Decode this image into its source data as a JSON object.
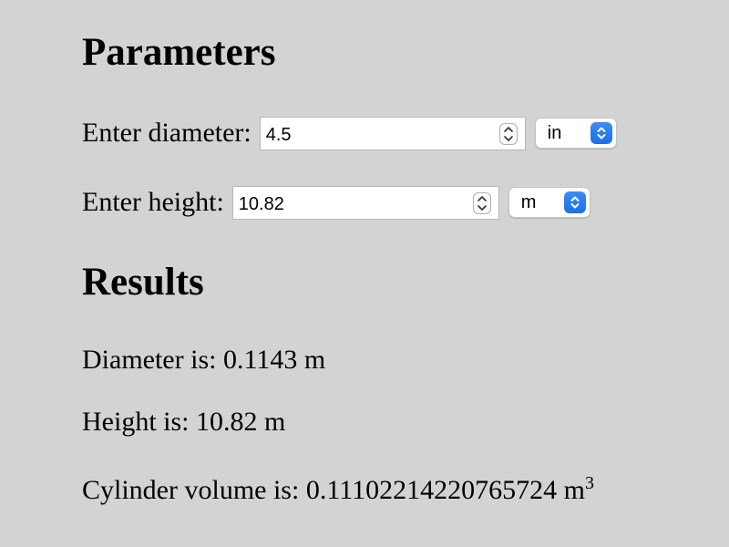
{
  "parameters": {
    "heading": "Parameters",
    "diameter": {
      "label": "Enter diameter:",
      "value": "4.5",
      "unit": "in"
    },
    "height": {
      "label": "Enter height:",
      "value": "10.82",
      "unit": "m"
    }
  },
  "results": {
    "heading": "Results",
    "diameter_text": "Diameter is: 0.1143 m",
    "height_text": "Height is: 10.82 m",
    "volume_text": "Cylinder volume is: 0.11102214220765724 m",
    "volume_exponent": "3"
  },
  "colors": {
    "background": "#d3d3d3",
    "select_accent": "#2a7ef0"
  },
  "icons": {
    "stepper": "up-down-stepper-icon",
    "select": "select-chevrons-icon"
  }
}
